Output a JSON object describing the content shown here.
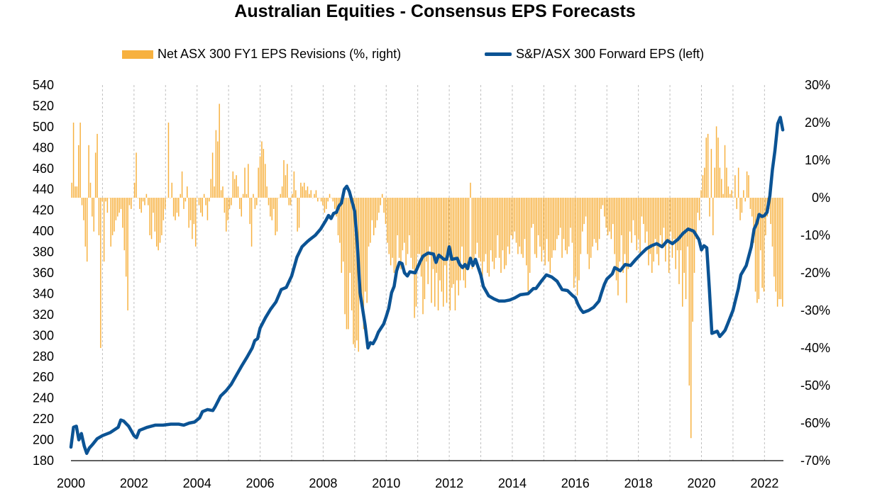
{
  "chart_data": {
    "type": "bar+line",
    "title": "Australian Equities - Consensus EPS Forecasts",
    "x_ticks": [
      "2000",
      "2002",
      "2004",
      "2006",
      "2008",
      "2010",
      "2012",
      "2014",
      "2016",
      "2018",
      "2020",
      "2022"
    ],
    "x_range": [
      2000,
      2022.6
    ],
    "y_left": {
      "min": 180,
      "max": 540,
      "step": 20,
      "ticks": [
        "540",
        "520",
        "500",
        "480",
        "460",
        "440",
        "420",
        "400",
        "380",
        "360",
        "340",
        "320",
        "300",
        "280",
        "260",
        "240",
        "220",
        "200",
        "180"
      ]
    },
    "y_right": {
      "min": -70,
      "max": 30,
      "step": 10,
      "ticks": [
        "30%",
        "20%",
        "10%",
        "0%",
        "-10%",
        "-20%",
        "-30%",
        "-40%",
        "-50%",
        "-60%",
        "-70%"
      ]
    },
    "grid": "vertical dashed gridlines at each year",
    "legend_position": "top",
    "series": [
      {
        "name": "Net ASX 300 FY1 EPS Revisions (%, right)",
        "type": "bar",
        "axis": "right",
        "color": "#F7B13F",
        "values": [
          4,
          20,
          3,
          3,
          14,
          20,
          -2,
          -6,
          -13,
          -17,
          14,
          4,
          -5,
          -9,
          12,
          17,
          -10,
          -40,
          -1,
          -17,
          -1,
          -4,
          0,
          -13,
          -10,
          -9,
          -6,
          -5,
          -4,
          -3,
          -8,
          -14,
          -21,
          -30,
          -2,
          -3,
          0,
          4,
          12,
          0,
          -3,
          -4,
          -1,
          -2,
          1,
          -2,
          -10,
          -11,
          -4,
          -9,
          -13,
          -14,
          -12,
          -10,
          -6,
          -3,
          0,
          20,
          0,
          4,
          -5,
          -6,
          -4,
          -5,
          1,
          7,
          -3,
          -1,
          3,
          -8,
          -6,
          -11,
          -7,
          -13,
          0,
          -2,
          -4,
          -5,
          1,
          -2,
          -6,
          -1,
          5,
          12,
          3,
          18,
          15,
          25,
          2,
          3,
          -4,
          -9,
          -6,
          -3,
          -2,
          7,
          5,
          6,
          3,
          -3,
          -5,
          1,
          8,
          1,
          9,
          -7,
          -13,
          1,
          -3,
          -2,
          8,
          11,
          15,
          13,
          9,
          3,
          -2,
          -5,
          -6,
          -3,
          -10,
          -9,
          0,
          1,
          3,
          10,
          6,
          9,
          -2,
          -2,
          1,
          7,
          2,
          -9,
          -8,
          4,
          3,
          4,
          2,
          3,
          1,
          2,
          0,
          1,
          2,
          -1,
          0,
          -1,
          -2,
          -4,
          -3,
          -1,
          1,
          0,
          -1,
          -3,
          -5,
          -10,
          -12,
          -20,
          -17,
          -31,
          -35,
          -35,
          -20,
          -30,
          -39,
          -40,
          -38,
          -41,
          -23,
          -30,
          -35,
          -25,
          -28,
          -13,
          -12,
          -6,
          -10,
          -8,
          -6,
          -4,
          -2,
          1,
          -4,
          -7,
          -12,
          -15,
          -18,
          -16,
          -20,
          -21,
          -10,
          -16,
          -19,
          -14,
          -12,
          -18,
          -15,
          -10,
          -16,
          -19,
          -32,
          -29,
          -15,
          -15,
          -21,
          -31,
          -27,
          -17,
          -23,
          -13,
          -28,
          -19,
          -29,
          -20,
          -30,
          -22,
          -25,
          -29,
          -18,
          -28,
          -16,
          -30,
          -24,
          -23,
          -30,
          -22,
          -26,
          -22,
          -13,
          -22,
          -24,
          -18,
          -19,
          4,
          -19,
          -17,
          -15,
          -12,
          -16,
          -17,
          -22,
          -17,
          -15,
          -20,
          -21,
          -14,
          -17,
          -19,
          -16,
          -10,
          -16,
          -20,
          -14,
          -19,
          -18,
          -13,
          -15,
          -10,
          -11,
          -9,
          -12,
          -15,
          -13,
          -15,
          -16,
          -11,
          -18,
          -25,
          -20,
          -8,
          -7,
          -15,
          -16,
          -10,
          -13,
          -17,
          -14,
          -18,
          -11,
          -17,
          -20,
          -16,
          -14,
          -14,
          -11,
          -10,
          -8,
          -16,
          -11,
          -14,
          -15,
          -13,
          -8,
          -12,
          -24,
          -21,
          -26,
          -22,
          -15,
          -9,
          -7,
          -5,
          -15,
          -19,
          -16,
          -13,
          -11,
          -12,
          -14,
          -11,
          -3,
          -2,
          -5,
          -8,
          -10,
          -9,
          -11,
          -7,
          -15,
          -22,
          -26,
          -17,
          -10,
          -20,
          -15,
          -28,
          -19,
          -9,
          -12,
          -6,
          -10,
          -14,
          -11,
          -15,
          -5,
          -7,
          -12,
          -9,
          -18,
          -15,
          -20,
          -17,
          -11,
          -15,
          -18,
          -10,
          -13,
          -8,
          -17,
          -11,
          -20,
          -9,
          -16,
          -11,
          -19,
          -14,
          -23,
          -14,
          -29,
          -20,
          -27,
          -13,
          -50,
          -64,
          -33,
          -20,
          -11,
          -4,
          -6,
          2,
          6,
          8,
          16,
          17,
          -5,
          13,
          -10,
          8,
          19,
          16,
          8,
          5,
          1,
          14,
          8,
          3,
          1,
          2,
          0,
          6,
          -3,
          8,
          -6,
          -4,
          2,
          -1,
          7,
          6,
          -3,
          -5,
          -12,
          -25,
          -28,
          -27,
          -14,
          -24,
          -25,
          -10,
          -5,
          -3,
          -7,
          -13,
          -21,
          -25,
          -29,
          -27,
          -27,
          -29
        ]
      },
      {
        "name": "S&P/ASX 300 Forward EPS (left)",
        "type": "line",
        "axis": "left",
        "color": "#0B5394",
        "points": [
          [
            2000.0,
            193
          ],
          [
            2000.08,
            212
          ],
          [
            2000.17,
            213
          ],
          [
            2000.25,
            200
          ],
          [
            2000.33,
            206
          ],
          [
            2000.42,
            194
          ],
          [
            2000.5,
            187
          ],
          [
            2000.58,
            192
          ],
          [
            2000.67,
            195
          ],
          [
            2000.83,
            201
          ],
          [
            2001.0,
            204
          ],
          [
            2001.25,
            207
          ],
          [
            2001.5,
            212
          ],
          [
            2001.58,
            219
          ],
          [
            2001.67,
            218
          ],
          [
            2001.83,
            213
          ],
          [
            2002.0,
            204
          ],
          [
            2002.08,
            202
          ],
          [
            2002.17,
            209
          ],
          [
            2002.42,
            212
          ],
          [
            2002.67,
            214
          ],
          [
            2002.92,
            214
          ],
          [
            2003.17,
            215
          ],
          [
            2003.42,
            215
          ],
          [
            2003.58,
            214
          ],
          [
            2003.75,
            216
          ],
          [
            2003.92,
            217
          ],
          [
            2004.08,
            221
          ],
          [
            2004.17,
            227
          ],
          [
            2004.33,
            229
          ],
          [
            2004.5,
            228
          ],
          [
            2004.58,
            232
          ],
          [
            2004.75,
            242
          ],
          [
            2004.92,
            247
          ],
          [
            2005.08,
            253
          ],
          [
            2005.25,
            262
          ],
          [
            2005.42,
            271
          ],
          [
            2005.58,
            279
          ],
          [
            2005.75,
            288
          ],
          [
            2005.83,
            295
          ],
          [
            2005.92,
            297
          ],
          [
            2006.0,
            307
          ],
          [
            2006.17,
            317
          ],
          [
            2006.33,
            325
          ],
          [
            2006.5,
            332
          ],
          [
            2006.67,
            344
          ],
          [
            2006.83,
            346
          ],
          [
            2007.0,
            357
          ],
          [
            2007.17,
            375
          ],
          [
            2007.33,
            385
          ],
          [
            2007.5,
            390
          ],
          [
            2007.58,
            392
          ],
          [
            2007.75,
            396
          ],
          [
            2007.92,
            402
          ],
          [
            2008.0,
            406
          ],
          [
            2008.08,
            410
          ],
          [
            2008.17,
            415
          ],
          [
            2008.25,
            412
          ],
          [
            2008.33,
            417
          ],
          [
            2008.42,
            418
          ],
          [
            2008.5,
            424
          ],
          [
            2008.58,
            427
          ],
          [
            2008.67,
            440
          ],
          [
            2008.75,
            443
          ],
          [
            2008.83,
            438
          ],
          [
            2009.0,
            419
          ],
          [
            2009.08,
            389
          ],
          [
            2009.17,
            341
          ],
          [
            2009.33,
            310
          ],
          [
            2009.42,
            288
          ],
          [
            2009.5,
            293
          ],
          [
            2009.58,
            292
          ],
          [
            2009.67,
            297
          ],
          [
            2009.75,
            303
          ],
          [
            2009.92,
            311
          ],
          [
            2010.0,
            318
          ],
          [
            2010.08,
            326
          ],
          [
            2010.17,
            341
          ],
          [
            2010.25,
            347
          ],
          [
            2010.33,
            362
          ],
          [
            2010.42,
            370
          ],
          [
            2010.5,
            369
          ],
          [
            2010.58,
            360
          ],
          [
            2010.67,
            357
          ],
          [
            2010.75,
            361
          ],
          [
            2010.92,
            360
          ],
          [
            2011.08,
            371
          ],
          [
            2011.17,
            376
          ],
          [
            2011.33,
            379
          ],
          [
            2011.5,
            378
          ],
          [
            2011.58,
            370
          ],
          [
            2011.67,
            377
          ],
          [
            2011.75,
            375
          ],
          [
            2011.83,
            373
          ],
          [
            2011.92,
            373
          ],
          [
            2012.0,
            385
          ],
          [
            2012.08,
            373
          ],
          [
            2012.25,
            374
          ],
          [
            2012.33,
            368
          ],
          [
            2012.42,
            365
          ],
          [
            2012.5,
            368
          ],
          [
            2012.58,
            364
          ],
          [
            2012.67,
            374
          ],
          [
            2012.75,
            367
          ],
          [
            2012.83,
            373
          ],
          [
            2013.0,
            358
          ],
          [
            2013.08,
            347
          ],
          [
            2013.25,
            338
          ],
          [
            2013.42,
            335
          ],
          [
            2013.58,
            333
          ],
          [
            2013.75,
            333
          ],
          [
            2013.92,
            334
          ],
          [
            2014.08,
            336
          ],
          [
            2014.25,
            339
          ],
          [
            2014.5,
            340
          ],
          [
            2014.67,
            345
          ],
          [
            2014.75,
            345
          ],
          [
            2014.92,
            352
          ],
          [
            2015.08,
            358
          ],
          [
            2015.25,
            356
          ],
          [
            2015.42,
            352
          ],
          [
            2015.58,
            344
          ],
          [
            2015.75,
            343
          ],
          [
            2015.92,
            338
          ],
          [
            2016.0,
            336
          ],
          [
            2016.08,
            330
          ],
          [
            2016.17,
            325
          ],
          [
            2016.25,
            322
          ],
          [
            2016.42,
            324
          ],
          [
            2016.58,
            327
          ],
          [
            2016.75,
            333
          ],
          [
            2016.83,
            341
          ],
          [
            2016.92,
            349
          ],
          [
            2017.0,
            354
          ],
          [
            2017.17,
            359
          ],
          [
            2017.25,
            365
          ],
          [
            2017.42,
            362
          ],
          [
            2017.58,
            368
          ],
          [
            2017.75,
            367
          ],
          [
            2017.92,
            373
          ],
          [
            2018.08,
            378
          ],
          [
            2018.25,
            383
          ],
          [
            2018.42,
            386
          ],
          [
            2018.58,
            388
          ],
          [
            2018.75,
            385
          ],
          [
            2018.92,
            391
          ],
          [
            2019.08,
            388
          ],
          [
            2019.25,
            392
          ],
          [
            2019.42,
            398
          ],
          [
            2019.58,
            402
          ],
          [
            2019.75,
            400
          ],
          [
            2019.92,
            392
          ],
          [
            2020.0,
            382
          ],
          [
            2020.08,
            386
          ],
          [
            2020.17,
            384
          ],
          [
            2020.25,
            345
          ],
          [
            2020.33,
            302
          ],
          [
            2020.5,
            304
          ],
          [
            2020.58,
            299
          ],
          [
            2020.67,
            302
          ],
          [
            2020.75,
            305
          ],
          [
            2020.83,
            311
          ],
          [
            2021.0,
            324
          ],
          [
            2021.17,
            345
          ],
          [
            2021.25,
            358
          ],
          [
            2021.42,
            367
          ],
          [
            2021.58,
            385
          ],
          [
            2021.67,
            402
          ],
          [
            2021.75,
            407
          ],
          [
            2021.83,
            416
          ],
          [
            2021.92,
            414
          ],
          [
            2022.0,
            415
          ],
          [
            2022.08,
            418
          ],
          [
            2022.17,
            434
          ],
          [
            2022.25,
            459
          ],
          [
            2022.33,
            477
          ],
          [
            2022.42,
            503
          ],
          [
            2022.5,
            509
          ],
          [
            2022.58,
            497
          ]
        ]
      }
    ]
  },
  "legend": {
    "bar_label": "Net ASX 300 FY1 EPS Revisions (%, right)",
    "line_label": "S&P/ASX 300 Forward EPS (left)"
  },
  "colors": {
    "bar": "#F7B13F",
    "line": "#0B5394",
    "grid": "#BFBFBF"
  }
}
